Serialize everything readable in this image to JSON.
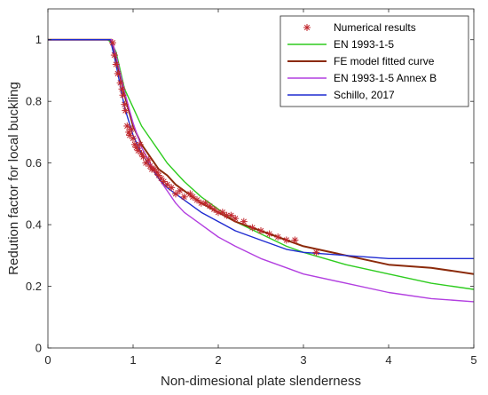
{
  "chart_data": {
    "type": "line",
    "title": "",
    "xlabel": "Non-dimesional plate slenderness",
    "ylabel": "Redution factor for local buckling",
    "xlim": [
      0,
      5
    ],
    "ylim": [
      0,
      1.1
    ],
    "x_ticks": [
      "0",
      "1",
      "2",
      "3",
      "4",
      "5"
    ],
    "y_ticks": [
      "0",
      "0.2",
      "0.4",
      "0.6",
      "0.8",
      "1"
    ],
    "grid": false,
    "legend_position": "top-right",
    "series": [
      {
        "name": "Numerical results",
        "kind": "scatter",
        "marker": "asterisk",
        "color": "#c0272d",
        "x": [
          0.76,
          0.78,
          0.8,
          0.82,
          0.85,
          0.87,
          0.88,
          0.9,
          0.91,
          0.93,
          0.95,
          0.96,
          0.98,
          1.0,
          1.02,
          1.04,
          1.06,
          1.08,
          1.1,
          1.12,
          1.15,
          1.18,
          1.2,
          1.22,
          1.25,
          1.28,
          1.3,
          1.33,
          1.36,
          1.4,
          1.45,
          1.5,
          1.55,
          1.6,
          1.67,
          1.7,
          1.75,
          1.8,
          1.85,
          1.9,
          1.95,
          2.0,
          2.05,
          2.1,
          2.15,
          2.2,
          2.3,
          2.4,
          2.5,
          2.6,
          2.7,
          2.8,
          2.9,
          3.15
        ],
        "y": [
          0.99,
          0.95,
          0.92,
          0.89,
          0.86,
          0.84,
          0.82,
          0.79,
          0.77,
          0.72,
          0.7,
          0.69,
          0.71,
          0.68,
          0.66,
          0.65,
          0.64,
          0.66,
          0.63,
          0.62,
          0.6,
          0.61,
          0.59,
          0.58,
          0.58,
          0.57,
          0.56,
          0.55,
          0.54,
          0.53,
          0.52,
          0.5,
          0.51,
          0.49,
          0.5,
          0.49,
          0.48,
          0.47,
          0.47,
          0.46,
          0.45,
          0.44,
          0.44,
          0.43,
          0.43,
          0.42,
          0.41,
          0.39,
          0.38,
          0.37,
          0.36,
          0.35,
          0.35,
          0.31
        ]
      },
      {
        "name": "EN 1993-1-5",
        "kind": "line",
        "color": "#2ecc1f",
        "x": [
          0,
          0.7,
          0.75,
          0.8,
          0.9,
          1.0,
          1.1,
          1.2,
          1.3,
          1.4,
          1.5,
          1.6,
          1.8,
          2.0,
          2.2,
          2.5,
          2.8,
          3.0,
          3.5,
          4.0,
          4.5,
          5.0
        ],
        "y": [
          1.0,
          1.0,
          0.99,
          0.96,
          0.84,
          0.78,
          0.72,
          0.68,
          0.64,
          0.6,
          0.57,
          0.54,
          0.49,
          0.45,
          0.41,
          0.37,
          0.33,
          0.31,
          0.27,
          0.24,
          0.21,
          0.19
        ]
      },
      {
        "name": "FE model fitted curve",
        "kind": "line",
        "color": "#8b2a0a",
        "x": [
          0,
          0.7,
          0.75,
          0.8,
          0.9,
          1.0,
          1.1,
          1.2,
          1.3,
          1.4,
          1.5,
          1.6,
          1.8,
          2.0,
          2.2,
          2.5,
          2.8,
          3.0,
          3.5,
          4.0,
          4.5,
          5.0
        ],
        "y": [
          1.0,
          1.0,
          1.0,
          0.94,
          0.82,
          0.72,
          0.66,
          0.62,
          0.58,
          0.56,
          0.53,
          0.51,
          0.47,
          0.44,
          0.41,
          0.38,
          0.35,
          0.33,
          0.3,
          0.27,
          0.26,
          0.24
        ]
      },
      {
        "name": "EN 1993-1-5 Annex B",
        "kind": "line",
        "color": "#b23fe0",
        "x": [
          0,
          0.7,
          0.75,
          0.8,
          0.9,
          1.0,
          1.1,
          1.2,
          1.3,
          1.4,
          1.5,
          1.6,
          1.8,
          2.0,
          2.2,
          2.5,
          2.8,
          3.0,
          3.5,
          4.0,
          4.5,
          5.0
        ],
        "y": [
          1.0,
          1.0,
          1.0,
          0.95,
          0.83,
          0.73,
          0.65,
          0.6,
          0.55,
          0.51,
          0.47,
          0.44,
          0.4,
          0.36,
          0.33,
          0.29,
          0.26,
          0.24,
          0.21,
          0.18,
          0.16,
          0.15
        ]
      },
      {
        "name": "Schillo, 2017",
        "kind": "line",
        "color": "#1f2bd1",
        "x": [
          0,
          0.73,
          0.75,
          0.8,
          0.9,
          1.0,
          1.1,
          1.2,
          1.3,
          1.4,
          1.5,
          1.6,
          1.8,
          2.0,
          2.2,
          2.5,
          2.8,
          3.0,
          3.5,
          4.0,
          4.5,
          5.0
        ],
        "y": [
          1.0,
          1.0,
          0.98,
          0.92,
          0.78,
          0.69,
          0.63,
          0.59,
          0.55,
          0.52,
          0.5,
          0.48,
          0.44,
          0.41,
          0.38,
          0.35,
          0.32,
          0.31,
          0.3,
          0.29,
          0.29,
          0.29
        ]
      }
    ]
  }
}
